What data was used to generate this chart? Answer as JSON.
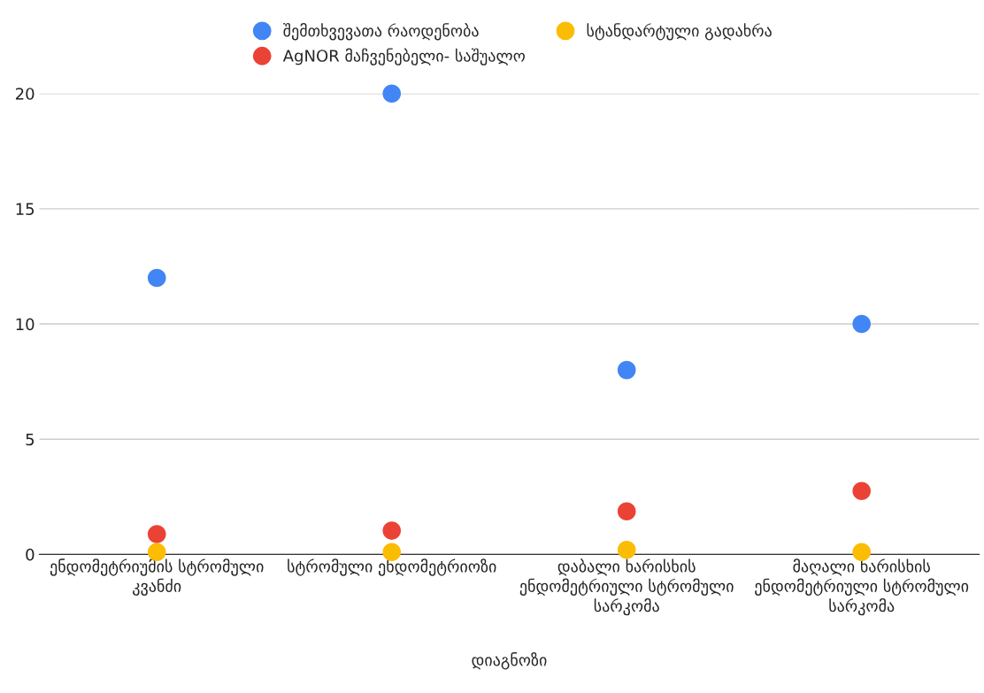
{
  "chart_data": {
    "type": "scatter",
    "xlabel": "დიაგნოზი",
    "categories": [
      "ენდომეტრიუმის სტრომული კვანძი",
      "სტრომული ენდომეტრიოზი",
      "დაბალი ხარისხის ენდომეტრიული სტრომული სარკომა",
      "მაღალი ხარისხის ენდომეტრიული სტრომული სარკომა"
    ],
    "series": [
      {
        "name": "შემთხვევათა რაოდენობა",
        "color": "#4285f4",
        "values": [
          12,
          20,
          8,
          10
        ]
      },
      {
        "name": "AgNOR მაჩვენებელი- საშუალო",
        "color": "#ea4335",
        "values": [
          0.88,
          1.03,
          1.87,
          2.75
        ]
      },
      {
        "name": "სტანდარტული გადახრა",
        "color": "#fbbc04",
        "values": [
          0.1,
          0.1,
          0.2,
          0.1
        ]
      }
    ],
    "ylim": [
      0,
      20
    ],
    "yticks": [
      0,
      5,
      10,
      15,
      20
    ],
    "grid": "y",
    "legend": "top",
    "marker": "circle"
  }
}
